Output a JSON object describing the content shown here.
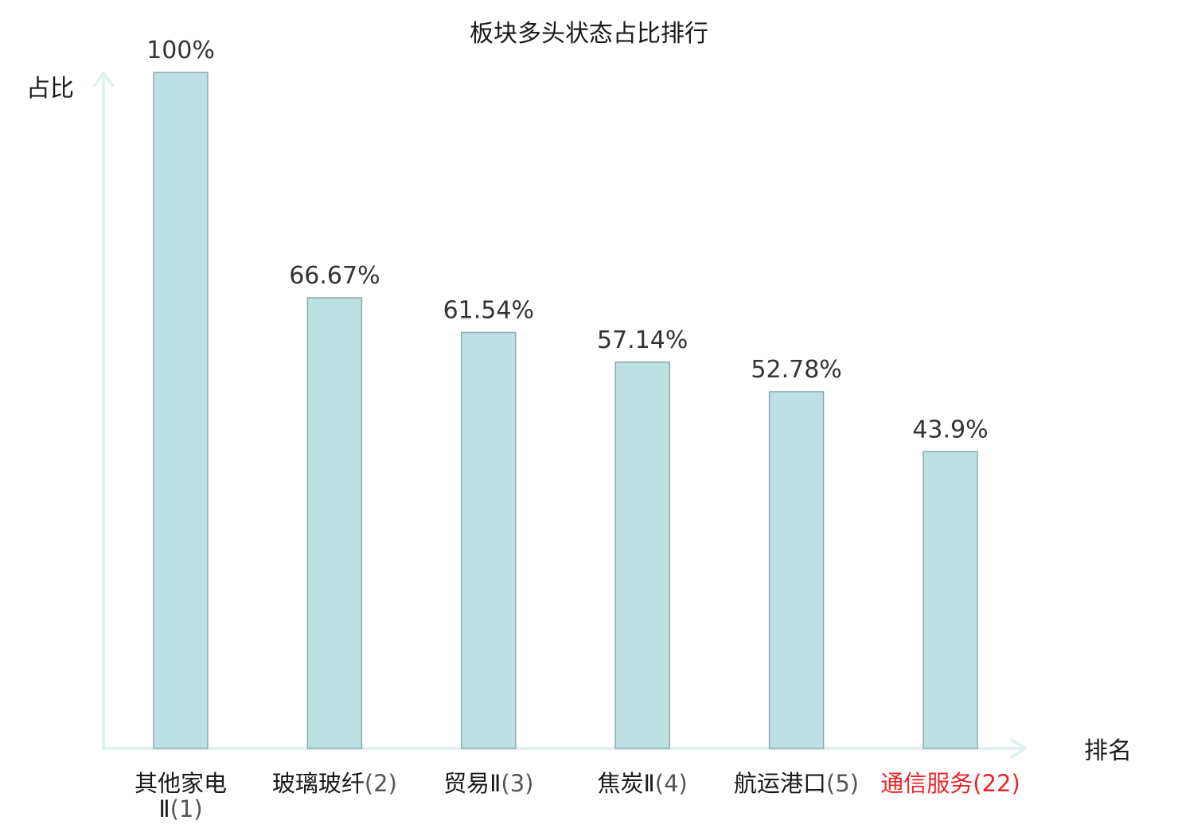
{
  "chart_data": {
    "type": "bar",
    "title": "板块多头状态占比排行",
    "xlabel": "排名",
    "ylabel": "占比",
    "ylim": [
      0,
      100
    ],
    "grid": false,
    "categories": [
      {
        "name": "其他家电Ⅱ",
        "rank": "(1)",
        "highlight": false
      },
      {
        "name": "玻璃玻纤",
        "rank": "(2)",
        "highlight": false
      },
      {
        "name": "贸易Ⅱ",
        "rank": "(3)",
        "highlight": false
      },
      {
        "name": "焦炭Ⅱ",
        "rank": "(4)",
        "highlight": false
      },
      {
        "name": "航运港口",
        "rank": "(5)",
        "highlight": false
      },
      {
        "name": "通信服务",
        "rank": "(22)",
        "highlight": true
      }
    ],
    "values": [
      100,
      66.67,
      61.54,
      57.14,
      52.78,
      43.9
    ],
    "value_labels": [
      "100%",
      "66.67%",
      "61.54%",
      "57.14%",
      "52.78%",
      "43.9%"
    ]
  },
  "colors": {
    "bar_fill": "#bde0e2",
    "bar_stroke": "#8aaaad",
    "axis": "#dff2ef",
    "highlight": "#e8272a"
  }
}
